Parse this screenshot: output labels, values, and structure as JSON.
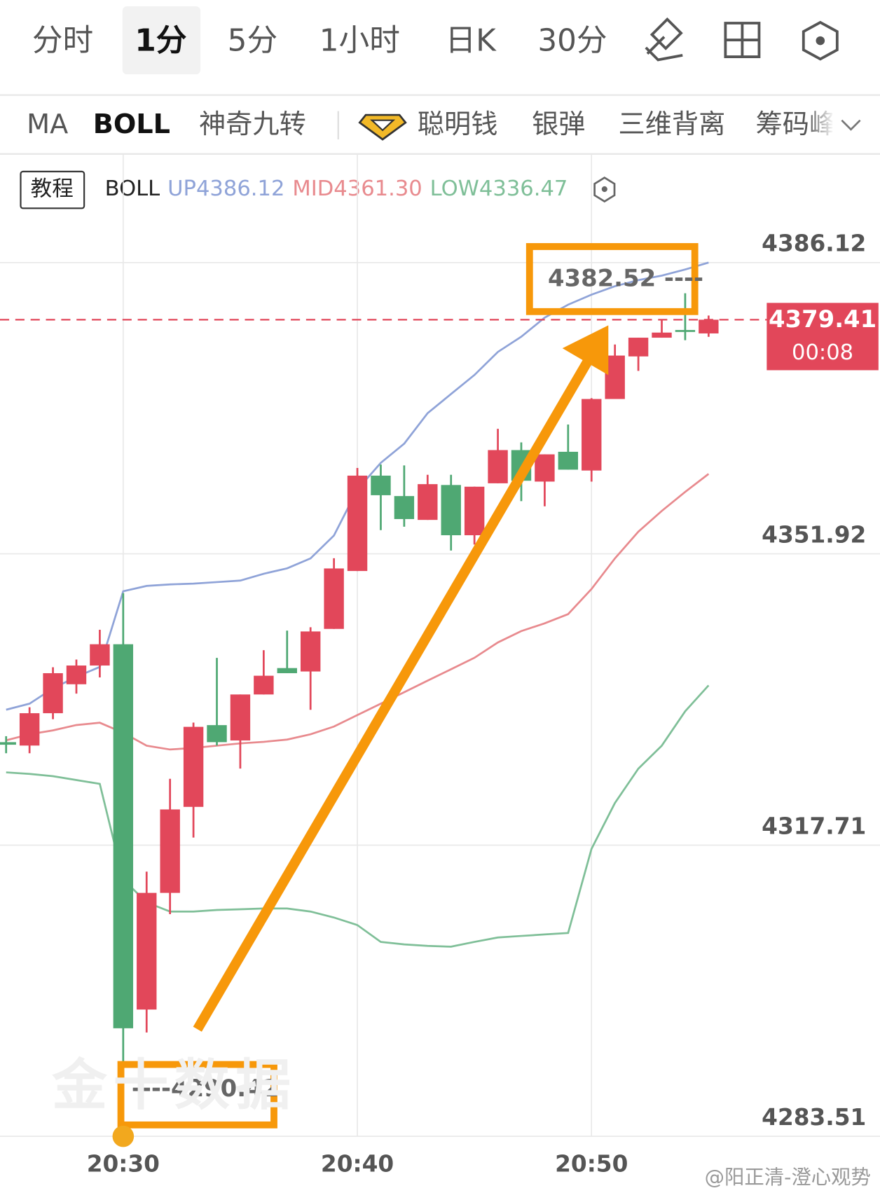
{
  "tabs": {
    "items": [
      "分时",
      "1分",
      "5分",
      "1小时",
      "日K",
      "30分"
    ],
    "selected": 1
  },
  "indicators": {
    "items": [
      "MA",
      "BOLL",
      "神奇九转",
      "聪明钱",
      "银弹",
      "三维背离",
      "筹码峰"
    ],
    "selected": 1
  },
  "chart_data": {
    "type": "candlestick",
    "tutorial_button": "教程",
    "indicator_name": "BOLL",
    "categories": [
      null,
      null,
      null,
      null,
      null,
      "20:30",
      null,
      null,
      null,
      null,
      null,
      null,
      null,
      null,
      null,
      "20:40",
      null,
      null,
      null,
      null,
      null,
      null,
      null,
      null,
      null,
      "20:50",
      null,
      null,
      null,
      null,
      null
    ],
    "open": [
      4329.8,
      4329.4,
      4333.2,
      4336.6,
      4338.8,
      4341.3,
      4298.4,
      4312.1,
      4322.2,
      4331.8,
      4330.0,
      4335.4,
      4338.5,
      4338.1,
      4343.1,
      4349.9,
      4361.1,
      4358.7,
      4355.9,
      4360.0,
      4354.1,
      4360.2,
      4364.1,
      4360.4,
      4363.9,
      4361.7,
      4370.1,
      4375.1,
      4377.3,
      4378.2,
      4377.8
    ],
    "high": [
      4330.5,
      4333.9,
      4338.6,
      4339.5,
      4343.0,
      4347.3,
      4314.6,
      4325.5,
      4332.1,
      4339.7,
      4335.4,
      4340.6,
      4342.9,
      4343.3,
      4351.4,
      4362.0,
      4362.4,
      4362.3,
      4361.2,
      4361.2,
      4359.8,
      4366.6,
      4365.0,
      4363.6,
      4367.1,
      4370.2,
      4376.5,
      4377.3,
      4379.4,
      4382.52,
      4379.9
    ],
    "low": [
      4328.5,
      4328.5,
      4332.5,
      4335.5,
      4337.4,
      4290.42,
      4295.7,
      4309.6,
      4318.6,
      4329.4,
      4326.7,
      4335.4,
      4337.9,
      4333.6,
      4343.1,
      4349.9,
      4354.7,
      4355.1,
      4355.9,
      4352.3,
      4353.0,
      4360.2,
      4358.1,
      4357.5,
      4361.8,
      4360.4,
      4370.1,
      4373.4,
      4377.3,
      4377.0,
      4377.4
    ],
    "close": [
      4329.5,
      4333.2,
      4337.9,
      4338.8,
      4341.3,
      4296.2,
      4312.1,
      4321.9,
      4331.6,
      4329.8,
      4335.4,
      4337.6,
      4337.9,
      4342.8,
      4350.2,
      4361.1,
      4358.8,
      4356.0,
      4360.1,
      4354.1,
      4359.8,
      4364.1,
      4360.5,
      4363.6,
      4361.8,
      4370.1,
      4375.2,
      4377.3,
      4377.9,
      4378.0,
      4379.41
    ],
    "up_color": "#e2475a",
    "down_color": "#4fa873",
    "bands": [
      {
        "label": "UP4386.12",
        "color": "#8fa3d8",
        "values": [
          4333.61,
          4334.32,
          4336.12,
          4337.47,
          4338.63,
          4347.52,
          4348.15,
          4348.33,
          4348.42,
          4348.6,
          4348.78,
          4349.58,
          4350.21,
          4351.38,
          4354.07,
          4359.46,
          4362.6,
          4364.85,
          4368.44,
          4370.68,
          4372.92,
          4375.62,
          4377.41,
          4379.66,
          4381.18,
          4382.35,
          4383.34,
          4384.06,
          4384.59,
          4385.31,
          4386.12
        ]
      },
      {
        "label": "MID4361.30",
        "color": "#e88a8e",
        "values": [
          4330.02,
          4330.73,
          4331.18,
          4331.81,
          4332.08,
          4330.91,
          4329.39,
          4328.94,
          4329.12,
          4329.39,
          4329.66,
          4329.84,
          4330.11,
          4330.73,
          4331.63,
          4332.98,
          4334.32,
          4335.67,
          4337.02,
          4338.36,
          4339.71,
          4341.51,
          4342.85,
          4343.75,
          4344.83,
          4347.79,
          4351.38,
          4354.52,
          4356.95,
          4359.19,
          4361.3
        ]
      },
      {
        "label": "LOW4336.47",
        "color": "#7fbf98",
        "values": [
          4326.25,
          4326.07,
          4325.8,
          4325.35,
          4324.9,
          4313.68,
          4310.99,
          4309.91,
          4309.91,
          4310.09,
          4310.18,
          4310.27,
          4310.27,
          4309.91,
          4309.21,
          4308.32,
          4306.34,
          4306.05,
          4305.87,
          4305.78,
          4306.34,
          4306.86,
          4307.04,
          4307.22,
          4307.39,
          4317.27,
          4322.66,
          4326.69,
          4329.39,
          4333.43,
          4336.47
        ]
      }
    ],
    "ylim": [
      4283.51,
      4390.88
    ],
    "yticks": [
      4386.12,
      4351.92,
      4317.71,
      4283.51
    ],
    "grid": true,
    "last_price": 4379.41,
    "countdown": "00:08",
    "max_marker": {
      "value": 4382.52,
      "label": "4382.52 ----"
    },
    "min_marker": {
      "value": 4290.42,
      "label": "----4290.42"
    }
  },
  "watermarks": [
    "金十数据",
    "@阳正清-澄心观势"
  ]
}
